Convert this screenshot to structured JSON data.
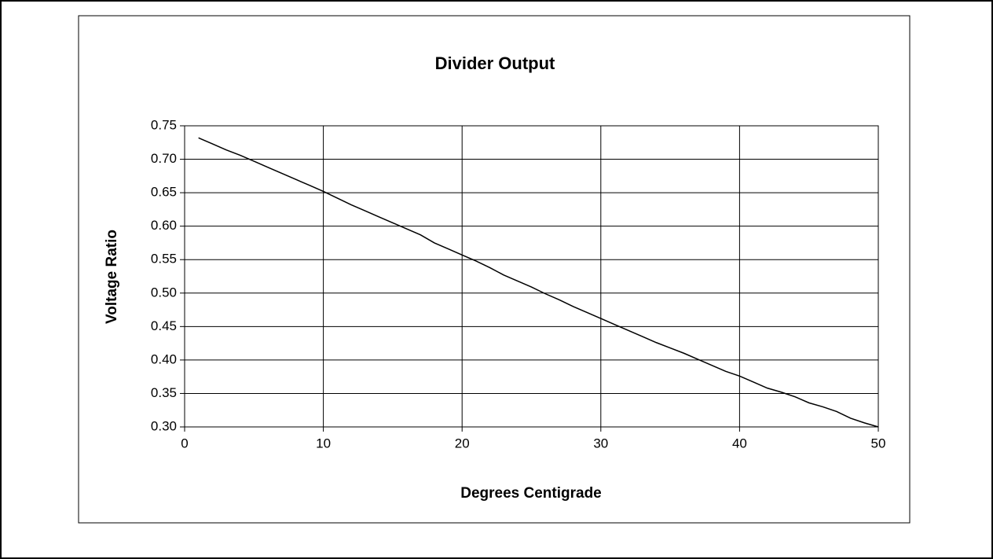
{
  "chart_data": {
    "type": "line",
    "title": "Divider Output",
    "xlabel": "Degrees Centigrade",
    "ylabel": "Voltage Ratio",
    "x": [
      1,
      2,
      3,
      4,
      5,
      6,
      7,
      8,
      9,
      10,
      11,
      12,
      13,
      14,
      15,
      16,
      17,
      18,
      19,
      20,
      21,
      22,
      23,
      24,
      25,
      26,
      27,
      28,
      29,
      30,
      31,
      32,
      33,
      34,
      35,
      36,
      37,
      38,
      39,
      40,
      41,
      42,
      43,
      44,
      45,
      46,
      47,
      48,
      49,
      50
    ],
    "values": [
      0.732,
      0.723,
      0.714,
      0.706,
      0.697,
      0.688,
      0.679,
      0.67,
      0.661,
      0.652,
      0.642,
      0.632,
      0.623,
      0.614,
      0.605,
      0.596,
      0.587,
      0.575,
      0.566,
      0.557,
      0.548,
      0.538,
      0.527,
      0.518,
      0.509,
      0.499,
      0.49,
      0.48,
      0.471,
      0.462,
      0.453,
      0.444,
      0.435,
      0.426,
      0.418,
      0.41,
      0.401,
      0.392,
      0.383,
      0.376,
      0.367,
      0.358,
      0.352,
      0.345,
      0.336,
      0.33,
      0.323,
      0.313,
      0.306,
      0.3
    ],
    "color": "#000000",
    "xlim": [
      0,
      50
    ],
    "xticks": [
      0,
      10,
      20,
      30,
      40,
      50
    ],
    "ylim": [
      0.3,
      0.75
    ],
    "yticks": [
      {
        "value": 0.3,
        "label": "0.30"
      },
      {
        "value": 0.35,
        "label": "0.35"
      },
      {
        "value": 0.4,
        "label": "0.40"
      },
      {
        "value": 0.45,
        "label": "0.45"
      },
      {
        "value": 0.5,
        "label": "0.50"
      },
      {
        "value": 0.55,
        "label": "0.55"
      },
      {
        "value": 0.6,
        "label": "0.60"
      },
      {
        "value": 0.65,
        "label": "0.65"
      },
      {
        "value": 0.7,
        "label": "0.70"
      },
      {
        "value": 0.75,
        "label": "0.75"
      }
    ],
    "grid": true
  }
}
